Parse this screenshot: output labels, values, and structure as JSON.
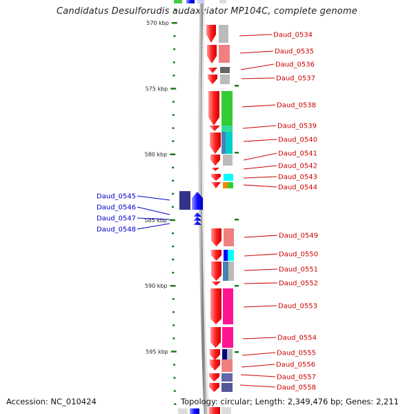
{
  "title": "Candidatus Desulforudis audaxviator MP104C, complete genome",
  "footer": {
    "accession": "Accession: NC_010424",
    "topology": "Topology: circular; Length: 2,349,476 bp; Genes: 2,211"
  },
  "scale": {
    "kbp_per_tick": 1,
    "labeled_ticks": [
      {
        "kb": 570,
        "label": "570 kbp"
      },
      {
        "kb": 575,
        "label": "575 kbp"
      },
      {
        "kb": 580,
        "label": "580 kbp"
      },
      {
        "kb": 585,
        "label": "585 kbp"
      },
      {
        "kb": 590,
        "label": "590 kbp"
      },
      {
        "kb": 595,
        "label": "595 kbp"
      }
    ]
  },
  "colors": {
    "forward_label": "#cc0000",
    "reverse_label": "#0000cc",
    "forward_gene": "#ff0000",
    "reverse_gene": "#0000ff",
    "tick": "#1a7a1a"
  },
  "genes_forward": [
    "Daud_0534",
    "Daud_0535",
    "Daud_0536",
    "Daud_0537",
    "Daud_0538",
    "Daud_0539",
    "Daud_0540",
    "Daud_0541",
    "Daud_0542",
    "Daud_0543",
    "Daud_0544",
    "Daud_0549",
    "Daud_0550",
    "Daud_0551",
    "Daud_0552",
    "Daud_0553",
    "Daud_0554",
    "Daud_0555",
    "Daud_0556",
    "Daud_0557",
    "Daud_0558"
  ],
  "genes_reverse": [
    "Daud_0545",
    "Daud_0546",
    "Daud_0547",
    "Daud_0548"
  ]
}
